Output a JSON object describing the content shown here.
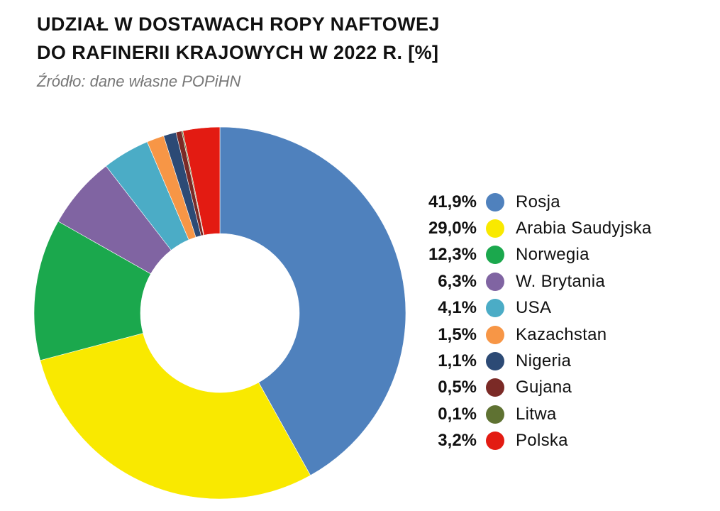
{
  "chart_data": {
    "type": "pie",
    "title_lines": [
      "UDZIAŁ W DOSTAWACH ROPY NAFTOWEJ",
      "DO RAFINERII KRAJOWYCH W 2022 R. [%]"
    ],
    "subtitle": "Źródło: dane własne POPiHN",
    "donut": true,
    "start_angle_deg": 0,
    "direction": "clockwise",
    "legend_position": "right",
    "slices": [
      {
        "label": "Rosja",
        "value": 41.9,
        "value_label": "41,9%",
        "color": "#4f81bd"
      },
      {
        "label": "Arabia Saudyjska",
        "value": 29.0,
        "value_label": "29,0%",
        "color": "#f9e900"
      },
      {
        "label": "Norwegia",
        "value": 12.3,
        "value_label": "12,3%",
        "color": "#1ba84d"
      },
      {
        "label": "W. Brytania",
        "value": 6.3,
        "value_label": "6,3%",
        "color": "#8064a2"
      },
      {
        "label": "USA",
        "value": 4.1,
        "value_label": "4,1%",
        "color": "#4bacc6"
      },
      {
        "label": "Kazachstan",
        "value": 1.5,
        "value_label": "1,5%",
        "color": "#f79646"
      },
      {
        "label": "Nigeria",
        "value": 1.1,
        "value_label": "1,1%",
        "color": "#2c4a75"
      },
      {
        "label": "Gujana",
        "value": 0.5,
        "value_label": "0,5%",
        "color": "#7b2a26"
      },
      {
        "label": "Litwa",
        "value": 0.1,
        "value_label": "0,1%",
        "color": "#5f7232"
      },
      {
        "label": "Polska",
        "value": 3.2,
        "value_label": "3,2%",
        "color": "#e31b12"
      }
    ]
  }
}
